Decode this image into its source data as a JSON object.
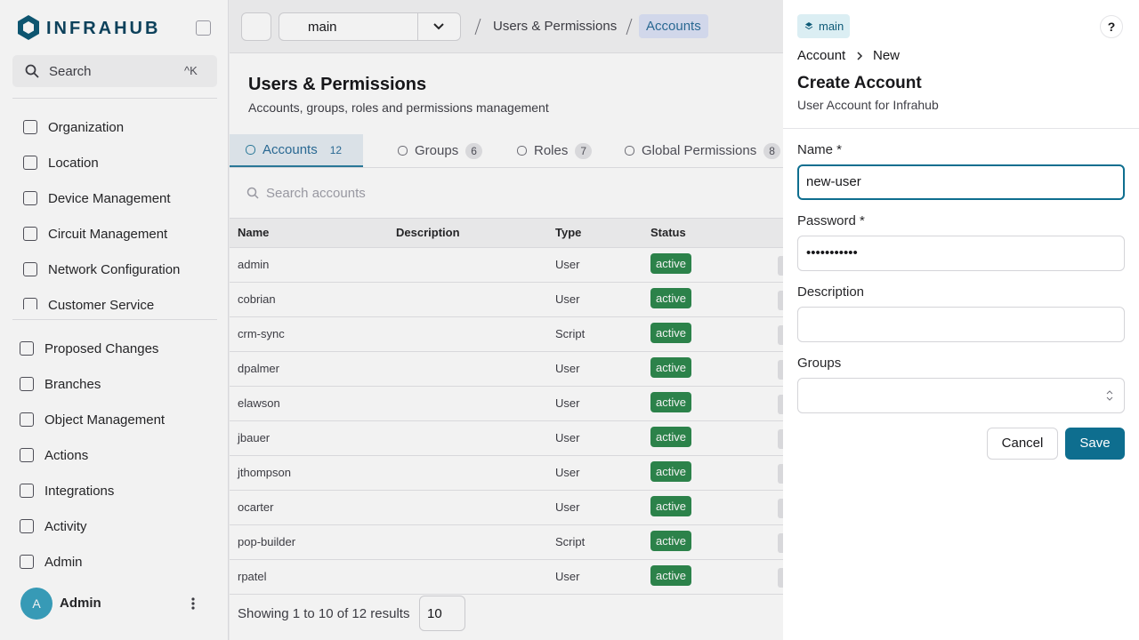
{
  "sidebar": {
    "logo": "INFRAHUB",
    "search": "Search",
    "shortcut": "^K",
    "nav_top": [
      "Organization",
      "Location",
      "Device Management",
      "Circuit Management",
      "Network Configuration",
      "Customer Service"
    ],
    "nav_bottom": [
      "Proposed Changes",
      "Branches",
      "Object Management",
      "Actions",
      "Integrations",
      "Activity",
      "Admin"
    ],
    "user": {
      "avatar": "A",
      "name": "Admin"
    }
  },
  "topbar": {
    "branch": "main",
    "breadcrumb": [
      "Users & Permissions",
      "Accounts"
    ]
  },
  "page": {
    "title": "Users & Permissions",
    "subtitle": "Accounts, groups, roles and permissions management",
    "tabs": [
      {
        "label": "Accounts",
        "count": 12
      },
      {
        "label": "Groups",
        "count": 6
      },
      {
        "label": "Roles",
        "count": 7
      },
      {
        "label": "Global Permissions",
        "count": 8
      }
    ],
    "search_placeholder": "Search accounts",
    "table": {
      "columns": [
        "Name",
        "Description",
        "Type",
        "Status"
      ],
      "rows": [
        {
          "name": "admin",
          "type": "User",
          "status": "active"
        },
        {
          "name": "cobrian",
          "type": "User",
          "status": "active"
        },
        {
          "name": "crm-sync",
          "type": "Script",
          "status": "active"
        },
        {
          "name": "dpalmer",
          "type": "User",
          "status": "active"
        },
        {
          "name": "elawson",
          "type": "User",
          "status": "active"
        },
        {
          "name": "jbauer",
          "type": "User",
          "status": "active"
        },
        {
          "name": "jthompson",
          "type": "User",
          "status": "active"
        },
        {
          "name": "ocarter",
          "type": "User",
          "status": "active"
        },
        {
          "name": "pop-builder",
          "type": "Script",
          "status": "active"
        },
        {
          "name": "rpatel",
          "type": "User",
          "status": "active"
        }
      ]
    },
    "pagination": "Showing 1 to 10 of 12 results",
    "page_size": 10
  },
  "drawer": {
    "branch": "main",
    "help": "?",
    "breadcrumb": [
      "Account",
      "New"
    ],
    "title": "Create Account",
    "subtitle": "User Account for Infrahub",
    "fields": [
      {
        "label": "Name *",
        "value": "new-user"
      },
      {
        "label": "Password *",
        "value": "•••••••••••"
      },
      {
        "label": "Description"
      },
      {
        "label": "Groups"
      }
    ],
    "buttons": {
      "cancel": "Cancel",
      "save": "Save"
    }
  }
}
